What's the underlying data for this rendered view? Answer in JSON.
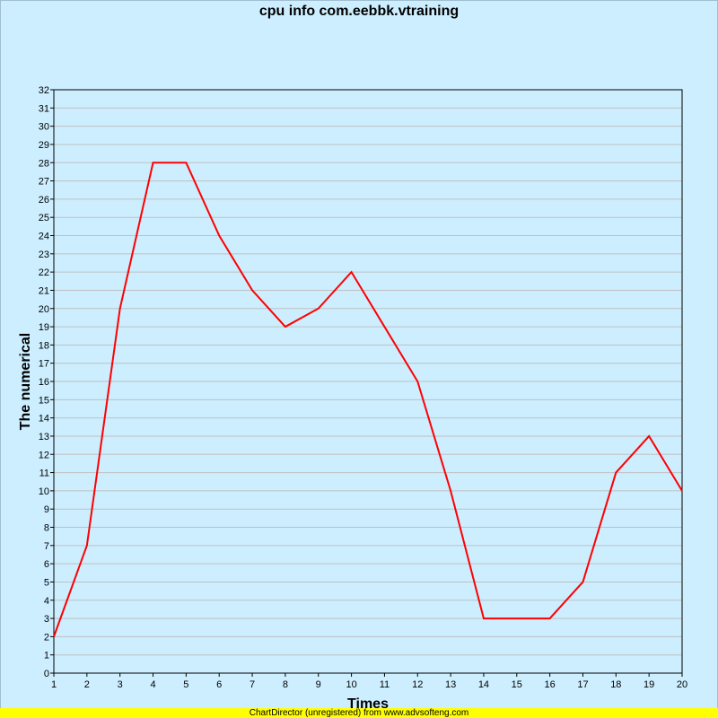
{
  "chart_data": {
    "type": "line",
    "title": "cpu info com.eebbk.vtraining",
    "xlabel": "Times",
    "ylabel": "The numerical",
    "x": [
      1,
      2,
      3,
      4,
      5,
      6,
      7,
      8,
      9,
      10,
      11,
      12,
      13,
      14,
      15,
      16,
      17,
      18,
      19,
      20
    ],
    "series": [
      {
        "values": [
          2,
          7,
          20,
          28,
          28,
          24,
          21,
          19,
          20,
          22,
          19,
          16,
          10,
          3,
          3,
          3,
          5,
          11,
          13,
          10
        ],
        "color": "#ff0000"
      }
    ],
    "xlim": [
      1,
      20
    ],
    "ylim": [
      0,
      32
    ],
    "ytick_step": 1,
    "grid": true,
    "grid_color": "#c0c0c0",
    "plot_background": "#cceeff",
    "background": "#cceeff"
  },
  "footer": {
    "text": "ChartDirector (unregistered) from www.advsofteng.com",
    "background": "#ffff00"
  }
}
